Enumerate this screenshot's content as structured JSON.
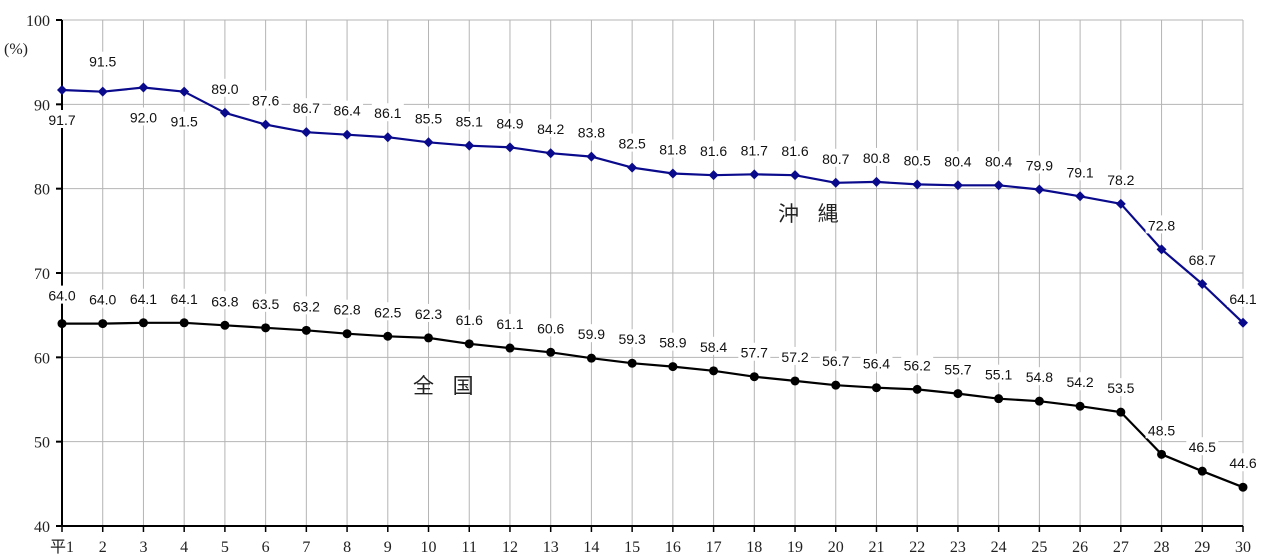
{
  "chart_data": {
    "type": "line",
    "ylabel": "(%)",
    "ylim": [
      40,
      100
    ],
    "yticks": [
      40,
      50,
      60,
      70,
      80,
      90,
      100
    ],
    "grid": "vertical and horizontal",
    "categories": [
      "平1",
      "2",
      "3",
      "4",
      "5",
      "6",
      "7",
      "8",
      "9",
      "10",
      "11",
      "12",
      "13",
      "14",
      "15",
      "16",
      "17",
      "18",
      "19",
      "20",
      "21",
      "22",
      "23",
      "24",
      "25",
      "26",
      "27",
      "28",
      "29",
      "30"
    ],
    "series": [
      {
        "name": "沖 縄",
        "color": "#0a0a8c",
        "marker": "diamond",
        "values": [
          91.7,
          91.5,
          92.0,
          91.5,
          89.0,
          87.6,
          86.7,
          86.4,
          86.1,
          85.5,
          85.1,
          84.9,
          84.2,
          83.8,
          82.5,
          81.8,
          81.6,
          81.7,
          81.6,
          80.7,
          80.8,
          80.5,
          80.4,
          80.4,
          79.9,
          79.1,
          78.2,
          72.8,
          68.7,
          64.1
        ],
        "labels": [
          "91.7",
          "91.5",
          "92.0",
          "91.5",
          "89.0",
          "87.6",
          "86.7",
          "86.4",
          "86.1",
          "85.5",
          "85.1",
          "84.9",
          "84.2",
          "83.8",
          "82.5",
          "81.8",
          "81.6",
          "81.7",
          "81.6",
          "80.7",
          "80.8",
          "80.5",
          "80.4",
          "80.4",
          "79.9",
          "79.1",
          "78.2",
          "72.8",
          "68.7",
          "64.1"
        ]
      },
      {
        "name": "全 国",
        "color": "#000000",
        "marker": "circle",
        "values": [
          64.0,
          64.0,
          64.1,
          64.1,
          63.8,
          63.5,
          63.2,
          62.8,
          62.5,
          62.3,
          61.6,
          61.1,
          60.6,
          59.9,
          59.3,
          58.9,
          58.4,
          57.7,
          57.2,
          56.7,
          56.4,
          56.2,
          55.7,
          55.1,
          54.8,
          54.2,
          53.5,
          48.5,
          46.5,
          44.6
        ],
        "labels": [
          "64.0",
          "64.0",
          "64.1",
          "64.1",
          "63.8",
          "63.5",
          "63.2",
          "62.8",
          "62.5",
          "62.3",
          "61.6",
          "61.1",
          "60.6",
          "59.9",
          "59.3",
          "58.9",
          "58.4",
          "57.7",
          "57.2",
          "56.7",
          "56.4",
          "56.2",
          "55.7",
          "55.1",
          "54.8",
          "54.2",
          "53.5",
          "48.5",
          "46.5",
          "44.6"
        ]
      }
    ]
  }
}
